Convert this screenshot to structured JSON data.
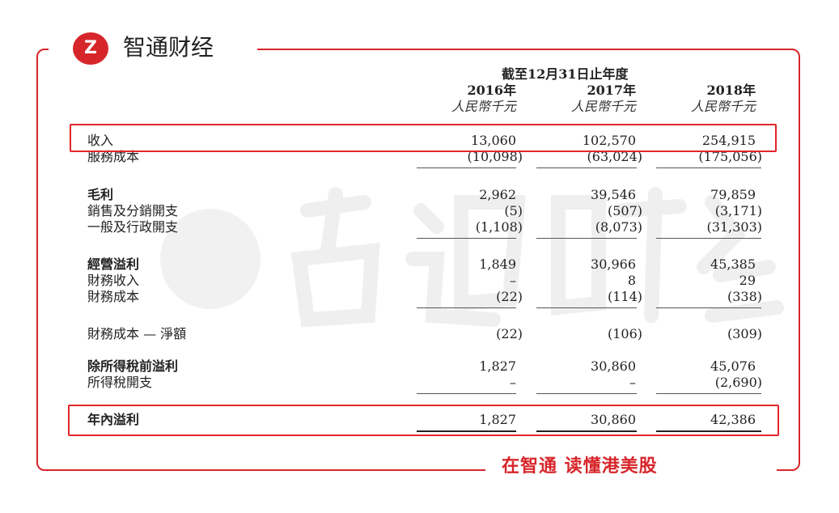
{
  "brand": {
    "name": "智通财经",
    "logo_letter": "Z",
    "slogan": "在智通 读懂港美股",
    "accent": "#d7262b"
  },
  "watermark": "智通财经",
  "table": {
    "period_header": "截至12月31日止年度",
    "columns": [
      {
        "year": "2016年",
        "unit": "人民幣千元"
      },
      {
        "year": "2017年",
        "unit": "人民幣千元"
      },
      {
        "year": "2018年",
        "unit": "人民幣千元"
      }
    ],
    "rows": [
      {
        "label": "收入",
        "values": [
          "13,060",
          "102,570",
          "254,915"
        ],
        "bold": false,
        "highlight": true
      },
      {
        "label": "服務成本",
        "values": [
          "(10,098)",
          "(63,024)",
          "(175,056)"
        ],
        "bold": false,
        "underline": true
      },
      {
        "label": "毛利",
        "values": [
          "2,962",
          "39,546",
          "79,859"
        ],
        "bold": true
      },
      {
        "label": "銷售及分銷開支",
        "values": [
          "(5)",
          "(507)",
          "(3,171)"
        ],
        "bold": false
      },
      {
        "label": "一般及行政開支",
        "values": [
          "(1,108)",
          "(8,073)",
          "(31,303)"
        ],
        "bold": false,
        "underline": true
      },
      {
        "label": "經營溢利",
        "values": [
          "1,849",
          "30,966",
          "45,385"
        ],
        "bold": true
      },
      {
        "label": "財務收入",
        "values": [
          "–",
          "8",
          "29"
        ],
        "bold": false
      },
      {
        "label": "財務成本",
        "values": [
          "(22)",
          "(114)",
          "(338)"
        ],
        "bold": false,
        "underline": true
      },
      {
        "label": "財務成本 — 淨額",
        "values": [
          "(22)",
          "(106)",
          "(309)"
        ],
        "bold": false
      },
      {
        "label": "除所得稅前溢利",
        "values": [
          "1,827",
          "30,860",
          "45,076"
        ],
        "bold": true
      },
      {
        "label": "所得稅開支",
        "values": [
          "–",
          "–",
          "(2,690)"
        ],
        "bold": false,
        "underline": true
      },
      {
        "label": "年內溢利",
        "values": [
          "1,827",
          "30,860",
          "42,386"
        ],
        "bold": true,
        "highlight": true,
        "double_underline": true
      }
    ]
  }
}
